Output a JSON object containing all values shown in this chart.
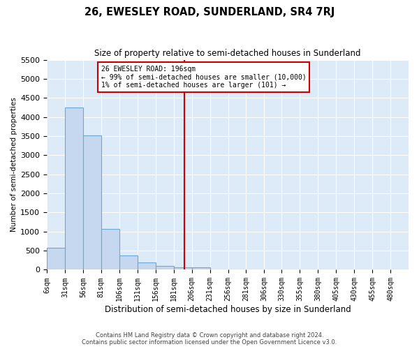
{
  "title": "26, EWESLEY ROAD, SUNDERLAND, SR4 7RJ",
  "subtitle": "Size of property relative to semi-detached houses in Sunderland",
  "xlabel": "Distribution of semi-detached houses by size in Sunderland",
  "ylabel": "Number of semi-detached properties",
  "bar_color": "#c5d8ef",
  "bar_edgecolor": "#6aaad4",
  "background_color": "#ddeaf7",
  "grid_color": "#ffffff",
  "annotation_box_color": "#cc0000",
  "vline_color": "#cc0000",
  "annotation_text": "26 EWESLEY ROAD: 196sqm\n← 99% of semi-detached houses are smaller (10,000)\n1% of semi-detached houses are larger (101) →",
  "footer_line1": "Contains HM Land Registry data © Crown copyright and database right 2024.",
  "footer_line2": "Contains public sector information licensed under the Open Government Licence v3.0.",
  "bins": [
    6,
    31,
    56,
    81,
    106,
    131,
    156,
    181,
    206,
    231,
    256,
    281,
    306,
    330,
    355,
    380,
    405,
    430,
    455,
    480,
    505
  ],
  "counts": [
    580,
    4250,
    3520,
    1070,
    370,
    200,
    100,
    70,
    70,
    0,
    0,
    0,
    0,
    0,
    0,
    0,
    0,
    0,
    0,
    0
  ],
  "ylim": [
    0,
    5500
  ],
  "yticks": [
    0,
    500,
    1000,
    1500,
    2000,
    2500,
    3000,
    3500,
    4000,
    4500,
    5000,
    5500
  ],
  "vline_x": 196
}
